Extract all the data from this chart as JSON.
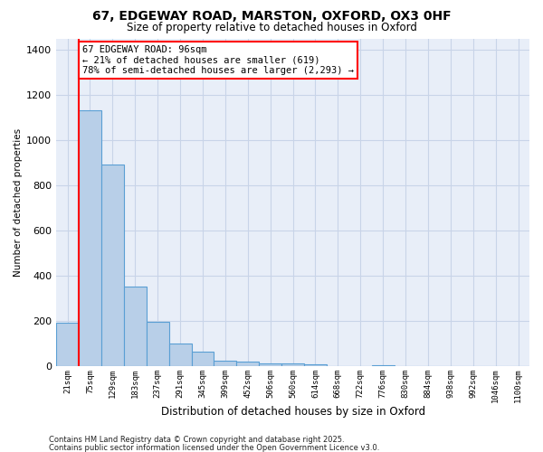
{
  "title_line1": "67, EDGEWAY ROAD, MARSTON, OXFORD, OX3 0HF",
  "title_line2": "Size of property relative to detached houses in Oxford",
  "xlabel": "Distribution of detached houses by size in Oxford",
  "ylabel": "Number of detached properties",
  "categories": [
    "21sqm",
    "75sqm",
    "129sqm",
    "183sqm",
    "237sqm",
    "291sqm",
    "345sqm",
    "399sqm",
    "452sqm",
    "506sqm",
    "560sqm",
    "614sqm",
    "668sqm",
    "722sqm",
    "776sqm",
    "830sqm",
    "884sqm",
    "938sqm",
    "992sqm",
    "1046sqm",
    "1100sqm"
  ],
  "values": [
    190,
    1130,
    890,
    350,
    195,
    100,
    62,
    25,
    18,
    13,
    10,
    8,
    0,
    0,
    5,
    0,
    0,
    0,
    0,
    0,
    0
  ],
  "bar_color": "#b8cfe8",
  "bar_edge_color": "#5a9fd4",
  "red_line_x": 0.5,
  "annotation_text": "67 EDGEWAY ROAD: 96sqm\n← 21% of detached houses are smaller (619)\n78% of semi-detached houses are larger (2,293) →",
  "annotation_box_color": "white",
  "annotation_box_edge_color": "red",
  "red_line_color": "red",
  "grid_color": "#c8d4e8",
  "bg_color": "#e8eef8",
  "ylim": [
    0,
    1450
  ],
  "yticks": [
    0,
    200,
    400,
    600,
    800,
    1000,
    1200,
    1400
  ],
  "footnote_line1": "Contains HM Land Registry data © Crown copyright and database right 2025.",
  "footnote_line2": "Contains public sector information licensed under the Open Government Licence v3.0."
}
